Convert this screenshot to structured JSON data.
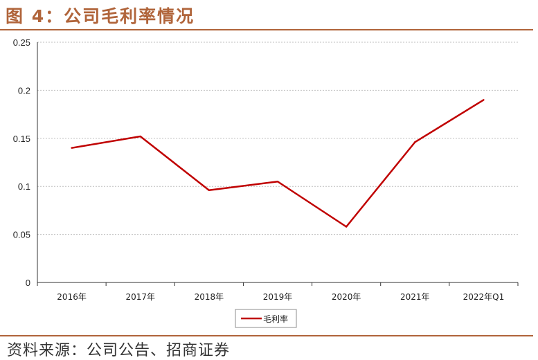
{
  "figure": {
    "title": "图 4：公司毛利率情况",
    "source": "资料来源：公司公告、招商证券"
  },
  "colors": {
    "accent": "#B0643A",
    "line": "#C00000",
    "grid": "#BFBFBF"
  },
  "chart_data": {
    "type": "line",
    "title": "",
    "xlabel": "",
    "ylabel": "",
    "categories": [
      "2016年",
      "2017年",
      "2018年",
      "2019年",
      "2020年",
      "2021年",
      "2022年Q1"
    ],
    "series": [
      {
        "name": "毛利率",
        "values": [
          0.14,
          0.152,
          0.096,
          0.105,
          0.058,
          0.146,
          0.19
        ]
      }
    ],
    "ylim": [
      0,
      0.25
    ],
    "yticks": [
      "0",
      "0.05",
      "0.1",
      "0.15",
      "0.2",
      "0.25"
    ],
    "grid": true,
    "legend": "bottom-center"
  }
}
